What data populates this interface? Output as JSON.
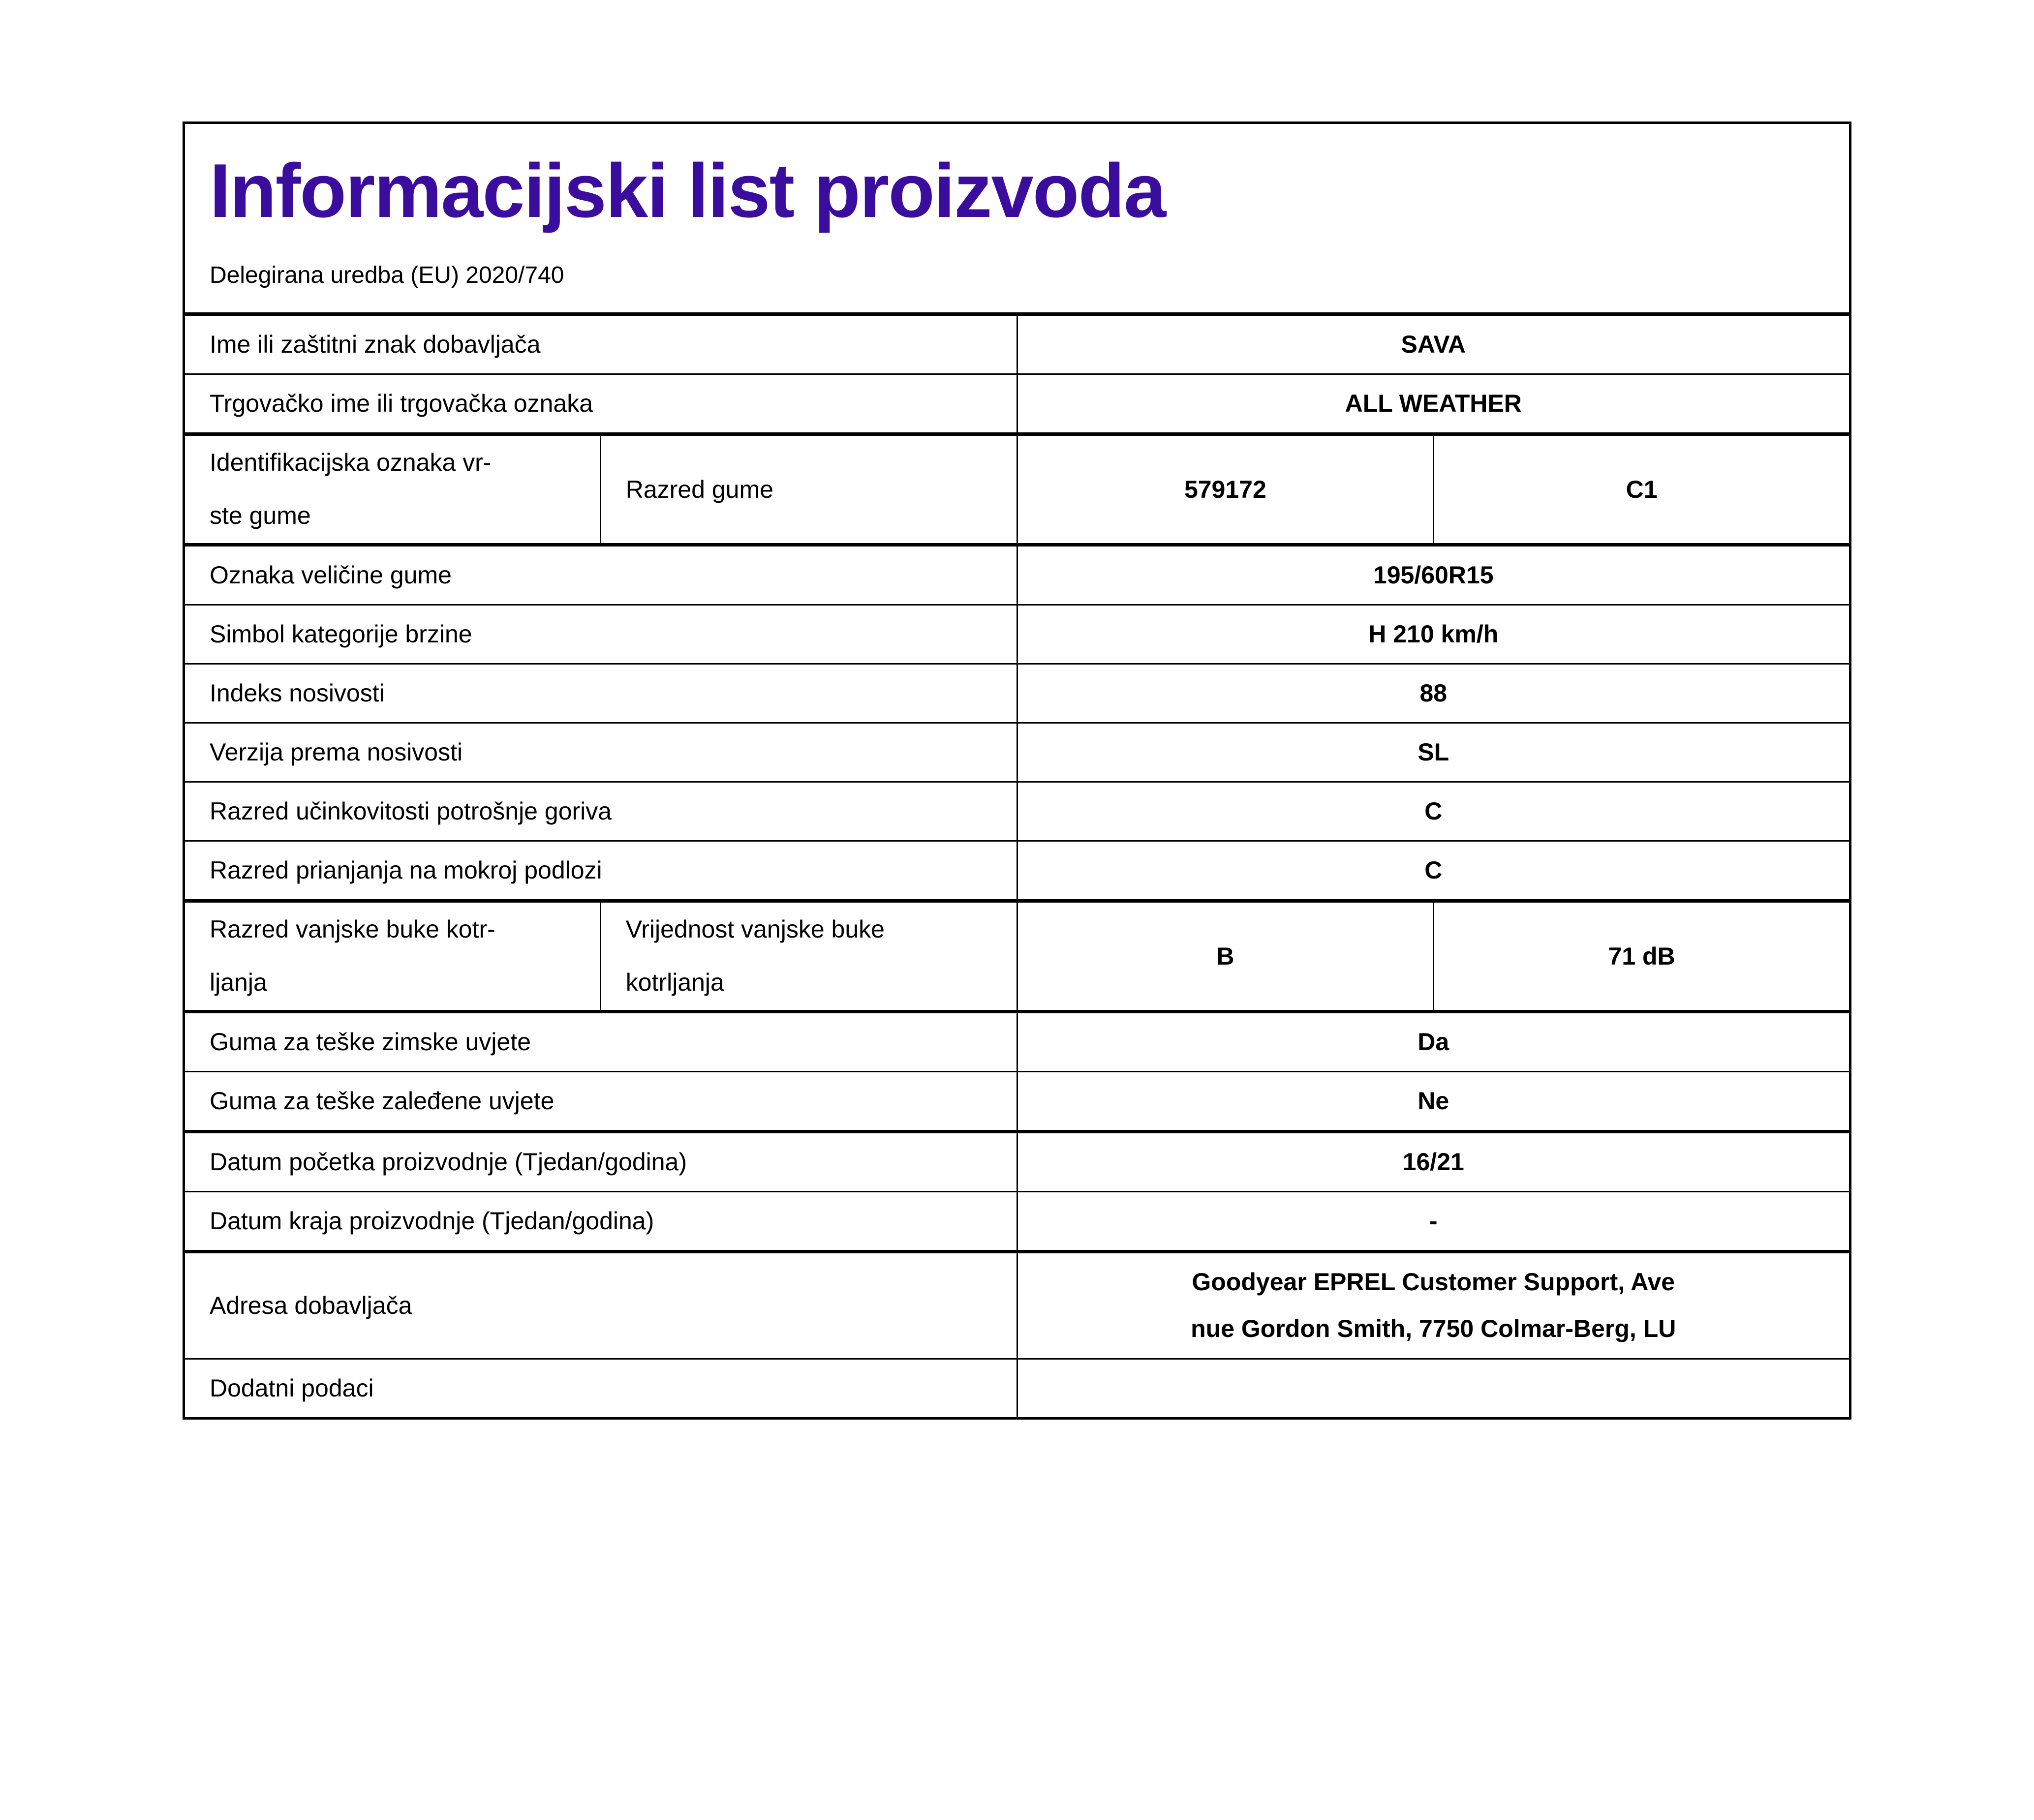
{
  "header": {
    "title": "Informacijski list proizvoda",
    "subtitle": "Delegirana uredba (EU) 2020/740"
  },
  "colors": {
    "title_accent": "#3b0d9e",
    "border": "#000000",
    "background": "#ffffff"
  },
  "rows": [
    {
      "label": "Ime ili zaštitni znak dobavljača",
      "value": "SAVA"
    },
    {
      "label": "Trgovačko ime ili trgovačka oznaka",
      "value": "ALL WEATHER"
    },
    {
      "label": "Identifikacijska oznaka vr-\nste gume",
      "label2": "Razred gume",
      "value": "579172",
      "value2": "C1"
    },
    {
      "label": "Oznaka veličine gume",
      "value": "195/60R15"
    },
    {
      "label": "Simbol kategorije brzine",
      "value": "H 210 km/h"
    },
    {
      "label": "Indeks nosivosti",
      "value": "88"
    },
    {
      "label": "Verzija prema nosivosti",
      "value": "SL"
    },
    {
      "label": "Razred učinkovitosti potrošnje goriva",
      "value": "C"
    },
    {
      "label": "Razred prianjanja na mokroj podlozi",
      "value": "C"
    },
    {
      "label": "Razred vanjske buke kotr-\nljanja",
      "label2": "Vrijednost vanjske buke\nkotrljanja",
      "value": "B",
      "value2": "71 dB"
    },
    {
      "label": "Guma za teške zimske uvjete",
      "value": "Da"
    },
    {
      "label": "Guma za teške zaleđene uvjete",
      "value": "Ne"
    },
    {
      "label": "Datum početka proizvodnje (Tjedan/godina)",
      "value": "16/21"
    },
    {
      "label": "Datum kraja proizvodnje (Tjedan/godina)",
      "value": "-"
    },
    {
      "label": "Adresa dobavljača",
      "value": "Goodyear EPREL Customer Support, Ave\nnue Gordon Smith, 7750 Colmar-Berg, LU"
    },
    {
      "label": "Dodatni podaci",
      "value": ""
    }
  ]
}
